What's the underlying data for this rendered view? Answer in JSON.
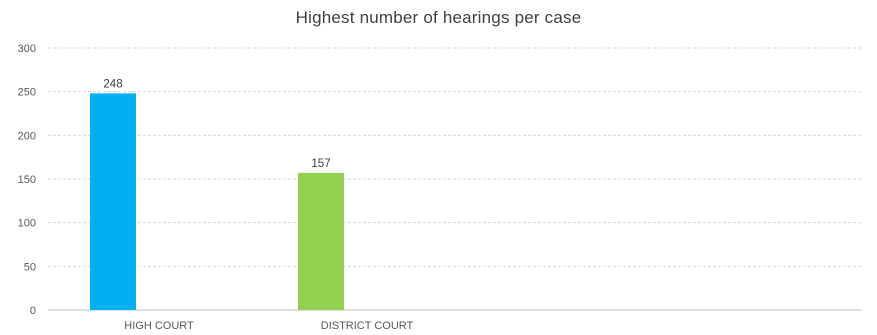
{
  "chart_data": {
    "type": "bar",
    "title": "Highest number of hearings per case",
    "categories": [
      "HIGH COURT",
      "DISTRICT COURT"
    ],
    "values": [
      248,
      157
    ],
    "colors": [
      "#00B0F0",
      "#92D050"
    ],
    "ylim": [
      0,
      300
    ],
    "yticks": [
      0,
      50,
      100,
      150,
      200,
      250,
      300
    ],
    "xlabel": "",
    "ylabel": "",
    "grid": true,
    "legend": "none",
    "data_labels": true
  }
}
